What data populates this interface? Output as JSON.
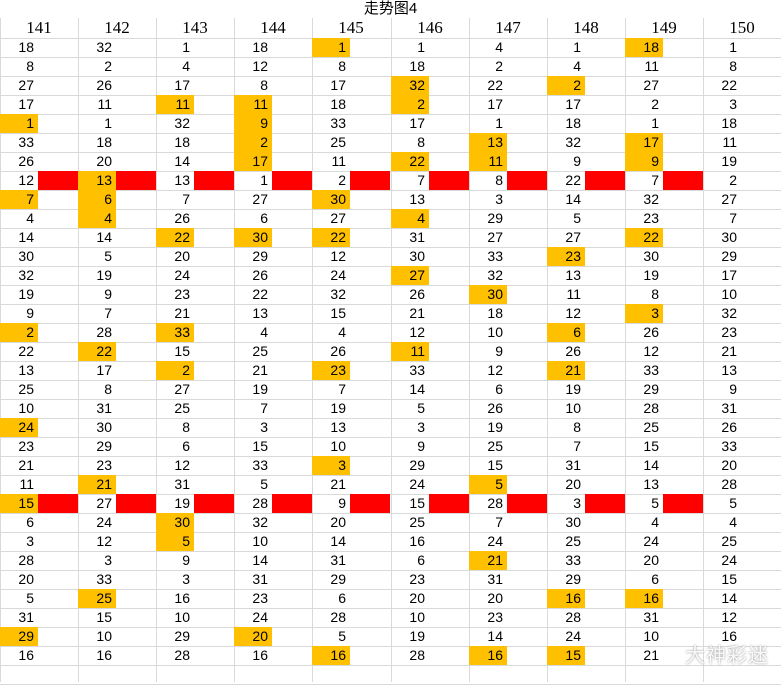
{
  "title": "走势图4",
  "columns": [
    "141",
    "142",
    "143",
    "144",
    "145",
    "146",
    "147",
    "148",
    "149",
    "150"
  ],
  "rows": [
    [
      "18",
      "32",
      "1",
      "18",
      "1",
      "1",
      "4",
      "1",
      "18",
      "1"
    ],
    [
      "8",
      "2",
      "4",
      "12",
      "8",
      "18",
      "2",
      "4",
      "11",
      "8"
    ],
    [
      "27",
      "26",
      "17",
      "8",
      "17",
      "32",
      "22",
      "2",
      "27",
      "22"
    ],
    [
      "17",
      "11",
      "11",
      "11",
      "18",
      "2",
      "17",
      "17",
      "2",
      "3"
    ],
    [
      "1",
      "1",
      "32",
      "9",
      "33",
      "17",
      "1",
      "18",
      "1",
      "18"
    ],
    [
      "33",
      "18",
      "18",
      "2",
      "25",
      "8",
      "13",
      "32",
      "17",
      "11"
    ],
    [
      "26",
      "20",
      "14",
      "17",
      "11",
      "22",
      "11",
      "9",
      "9",
      "19"
    ],
    [
      "12",
      "13",
      "13",
      "1",
      "2",
      "7",
      "8",
      "22",
      "7",
      "2"
    ],
    [
      "7",
      "6",
      "7",
      "27",
      "30",
      "13",
      "3",
      "14",
      "32",
      "27"
    ],
    [
      "4",
      "4",
      "26",
      "6",
      "27",
      "4",
      "29",
      "5",
      "23",
      "7"
    ],
    [
      "14",
      "14",
      "22",
      "30",
      "22",
      "31",
      "27",
      "27",
      "22",
      "30"
    ],
    [
      "30",
      "5",
      "20",
      "29",
      "12",
      "30",
      "33",
      "23",
      "30",
      "29"
    ],
    [
      "32",
      "19",
      "24",
      "26",
      "24",
      "27",
      "32",
      "13",
      "19",
      "17"
    ],
    [
      "19",
      "9",
      "23",
      "22",
      "32",
      "26",
      "30",
      "11",
      "8",
      "10"
    ],
    [
      "9",
      "7",
      "21",
      "13",
      "15",
      "21",
      "18",
      "12",
      "3",
      "32"
    ],
    [
      "2",
      "28",
      "33",
      "4",
      "4",
      "12",
      "10",
      "6",
      "26",
      "23"
    ],
    [
      "22",
      "22",
      "15",
      "25",
      "26",
      "11",
      "9",
      "26",
      "12",
      "21"
    ],
    [
      "13",
      "17",
      "2",
      "21",
      "23",
      "33",
      "12",
      "21",
      "33",
      "13"
    ],
    [
      "25",
      "8",
      "27",
      "19",
      "7",
      "14",
      "6",
      "19",
      "29",
      "9"
    ],
    [
      "10",
      "31",
      "25",
      "7",
      "19",
      "5",
      "26",
      "10",
      "28",
      "31"
    ],
    [
      "24",
      "30",
      "8",
      "3",
      "13",
      "3",
      "19",
      "8",
      "25",
      "26"
    ],
    [
      "23",
      "29",
      "6",
      "15",
      "10",
      "9",
      "25",
      "7",
      "15",
      "33"
    ],
    [
      "21",
      "23",
      "12",
      "33",
      "3",
      "29",
      "15",
      "31",
      "14",
      "20"
    ],
    [
      "11",
      "21",
      "31",
      "5",
      "21",
      "24",
      "5",
      "20",
      "13",
      "28"
    ],
    [
      "15",
      "27",
      "19",
      "28",
      "9",
      "15",
      "28",
      "3",
      "5",
      "5"
    ],
    [
      "6",
      "24",
      "30",
      "32",
      "20",
      "25",
      "7",
      "30",
      "4",
      "4"
    ],
    [
      "3",
      "12",
      "5",
      "10",
      "14",
      "16",
      "24",
      "25",
      "24",
      "25"
    ],
    [
      "28",
      "3",
      "9",
      "14",
      "31",
      "6",
      "21",
      "33",
      "20",
      "24"
    ],
    [
      "20",
      "33",
      "3",
      "31",
      "29",
      "23",
      "31",
      "29",
      "6",
      "15"
    ],
    [
      "5",
      "25",
      "16",
      "23",
      "6",
      "20",
      "20",
      "16",
      "16",
      "14"
    ],
    [
      "31",
      "15",
      "10",
      "24",
      "28",
      "10",
      "23",
      "28",
      "31",
      "12"
    ],
    [
      "29",
      "10",
      "29",
      "20",
      "5",
      "19",
      "14",
      "24",
      "10",
      "16"
    ],
    [
      "16",
      "16",
      "28",
      "16",
      "16",
      "28",
      "16",
      "15",
      "21",
      ""
    ]
  ],
  "highlights": [
    [
      0,
      4
    ],
    [
      0,
      8
    ],
    [
      2,
      5
    ],
    [
      2,
      7
    ],
    [
      3,
      2
    ],
    [
      3,
      3
    ],
    [
      3,
      5
    ],
    [
      4,
      0
    ],
    [
      4,
      3
    ],
    [
      5,
      3
    ],
    [
      5,
      6
    ],
    [
      5,
      8
    ],
    [
      6,
      3
    ],
    [
      6,
      5
    ],
    [
      6,
      6
    ],
    [
      6,
      8
    ],
    [
      7,
      1
    ],
    [
      8,
      0
    ],
    [
      8,
      1
    ],
    [
      8,
      4
    ],
    [
      9,
      1
    ],
    [
      9,
      5
    ],
    [
      10,
      2
    ],
    [
      10,
      3
    ],
    [
      10,
      4
    ],
    [
      10,
      8
    ],
    [
      11,
      7
    ],
    [
      12,
      5
    ],
    [
      13,
      6
    ],
    [
      14,
      8
    ],
    [
      15,
      0
    ],
    [
      15,
      2
    ],
    [
      15,
      7
    ],
    [
      16,
      1
    ],
    [
      16,
      5
    ],
    [
      17,
      2
    ],
    [
      17,
      4
    ],
    [
      17,
      7
    ],
    [
      20,
      0
    ],
    [
      22,
      4
    ],
    [
      23,
      1
    ],
    [
      23,
      6
    ],
    [
      24,
      0
    ],
    [
      25,
      2
    ],
    [
      26,
      2
    ],
    [
      27,
      6
    ],
    [
      29,
      1
    ],
    [
      29,
      7
    ],
    [
      29,
      8
    ],
    [
      31,
      0
    ],
    [
      31,
      3
    ],
    [
      32,
      4
    ],
    [
      32,
      6
    ],
    [
      32,
      7
    ]
  ],
  "red_bar_rows": [
    7,
    24
  ],
  "colors": {
    "highlight": "#ffc000",
    "bar": "#ff0000",
    "grid": "#d9d9d9"
  },
  "watermark": "大神彩迷"
}
